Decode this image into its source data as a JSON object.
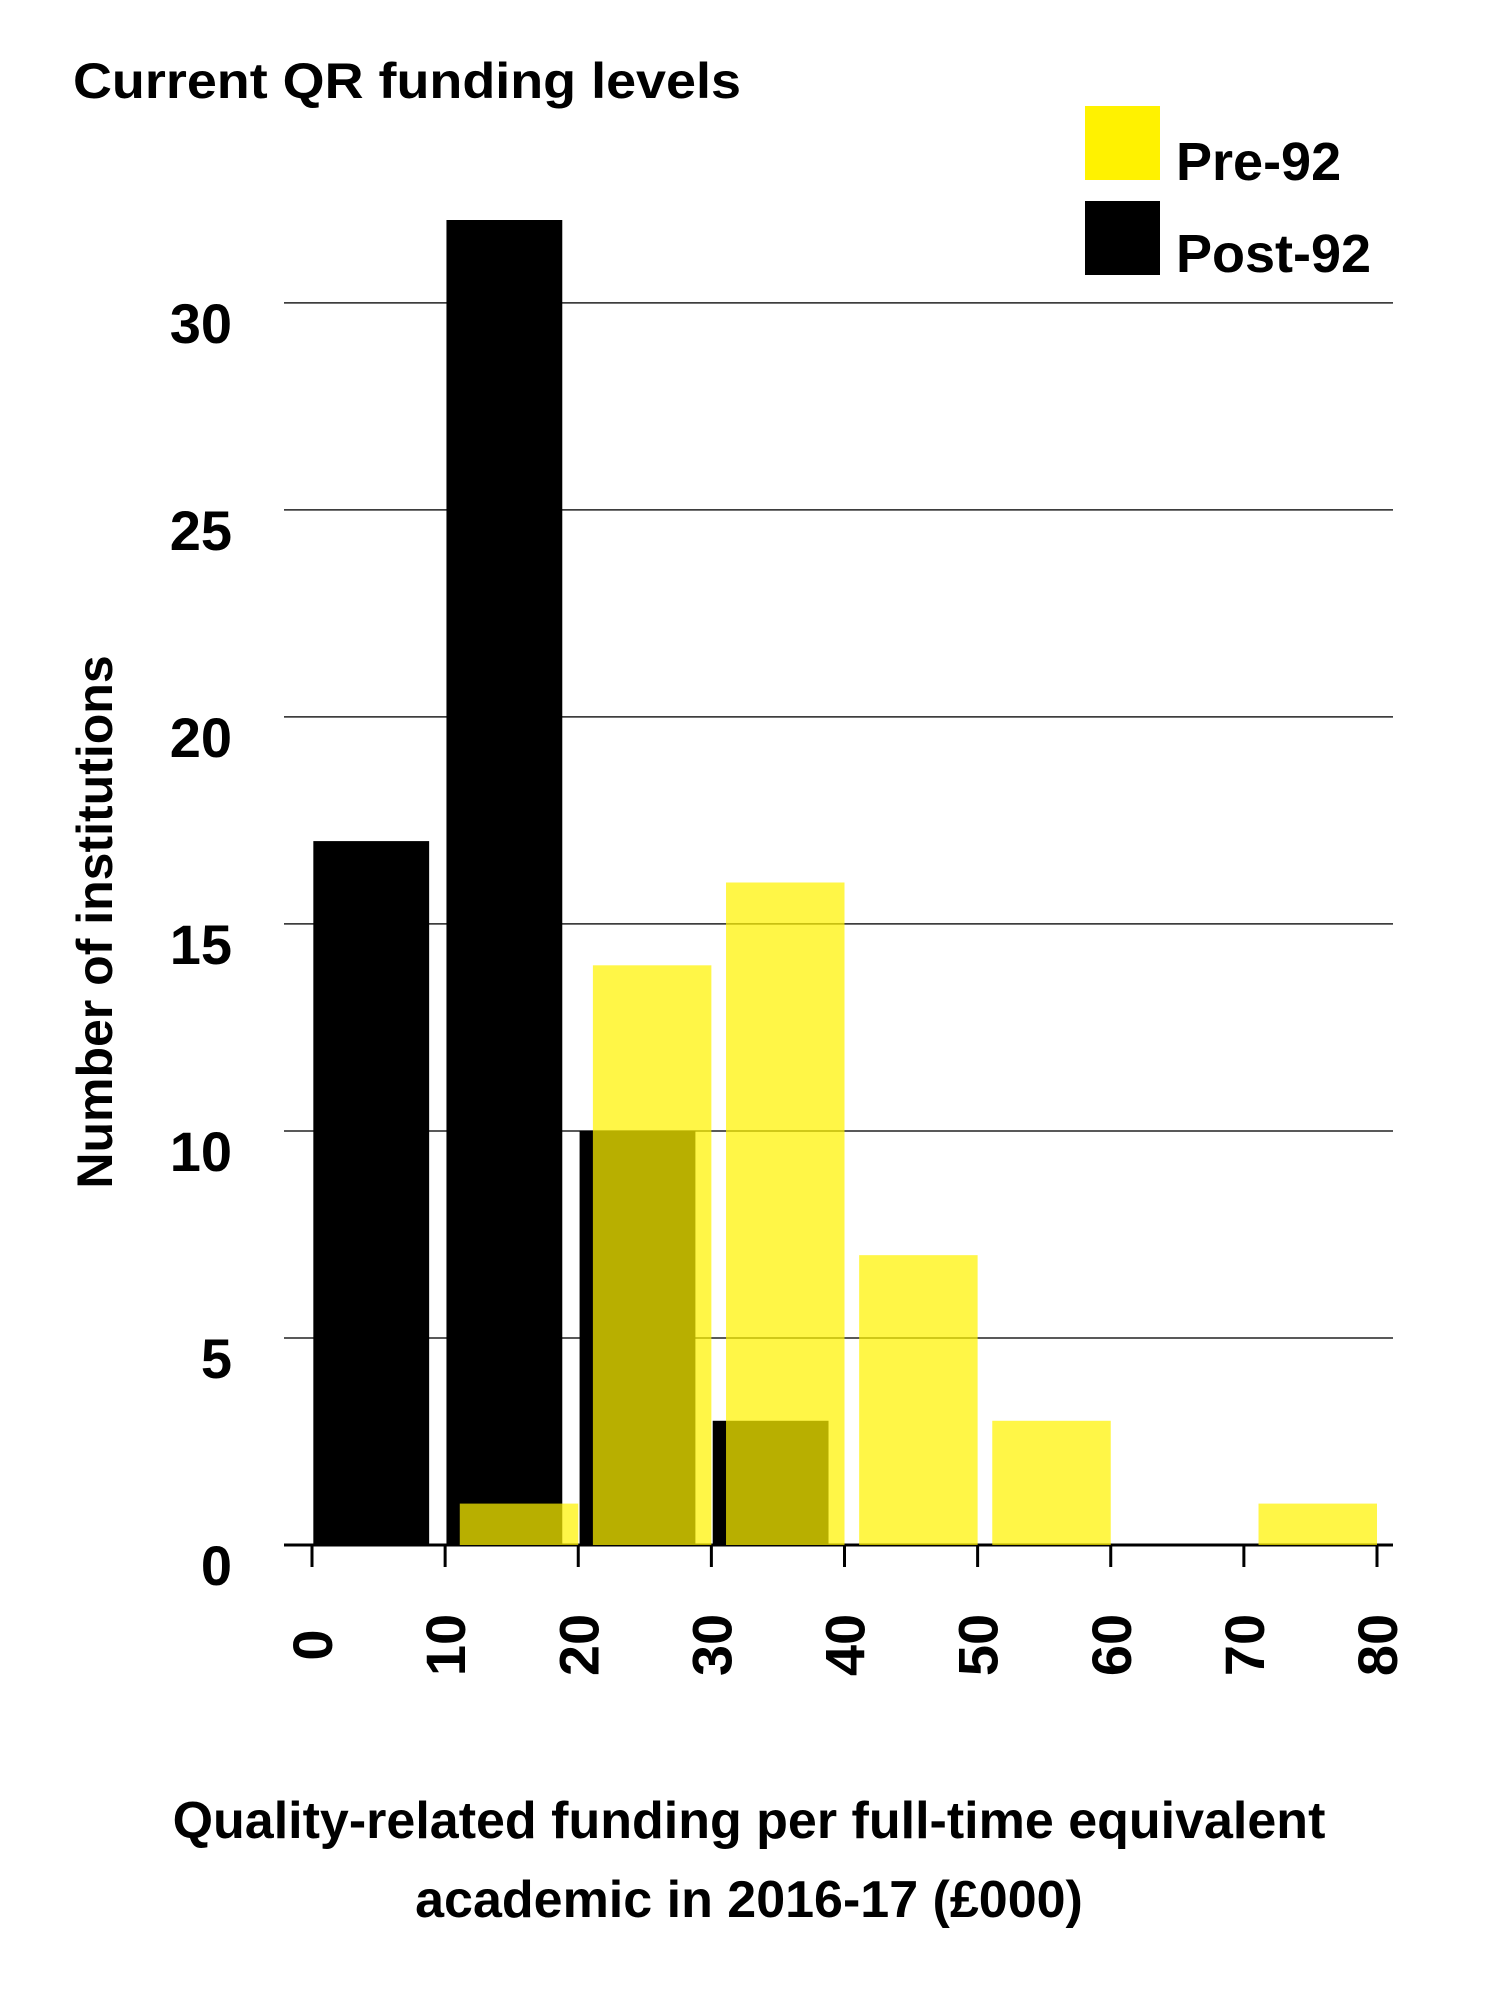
{
  "chart_data": {
    "type": "histogram",
    "title": "Current QR funding levels",
    "ylabel": "Number of institutions",
    "xlabel": [
      "Quality-related funding per full-time equivalent",
      "academic in 2016-17 (£000)"
    ],
    "bins": [
      0,
      10,
      20,
      30,
      40,
      50,
      60,
      70,
      80
    ],
    "series": [
      {
        "name": "Post-92",
        "color": "#000000",
        "values": [
          17,
          32,
          10,
          3,
          0,
          0,
          0,
          0
        ]
      },
      {
        "name": "Pre-92",
        "color": "#fff200",
        "values": [
          0,
          1,
          14,
          16,
          7,
          3,
          0,
          1
        ]
      }
    ],
    "xlim": [
      0,
      80
    ],
    "xticks": [
      0,
      10,
      20,
      30,
      40,
      50,
      60,
      70,
      80
    ],
    "ylim": [
      0,
      32
    ],
    "yticks": [
      0,
      5,
      10,
      15,
      20,
      25,
      30
    ],
    "grid": true
  }
}
